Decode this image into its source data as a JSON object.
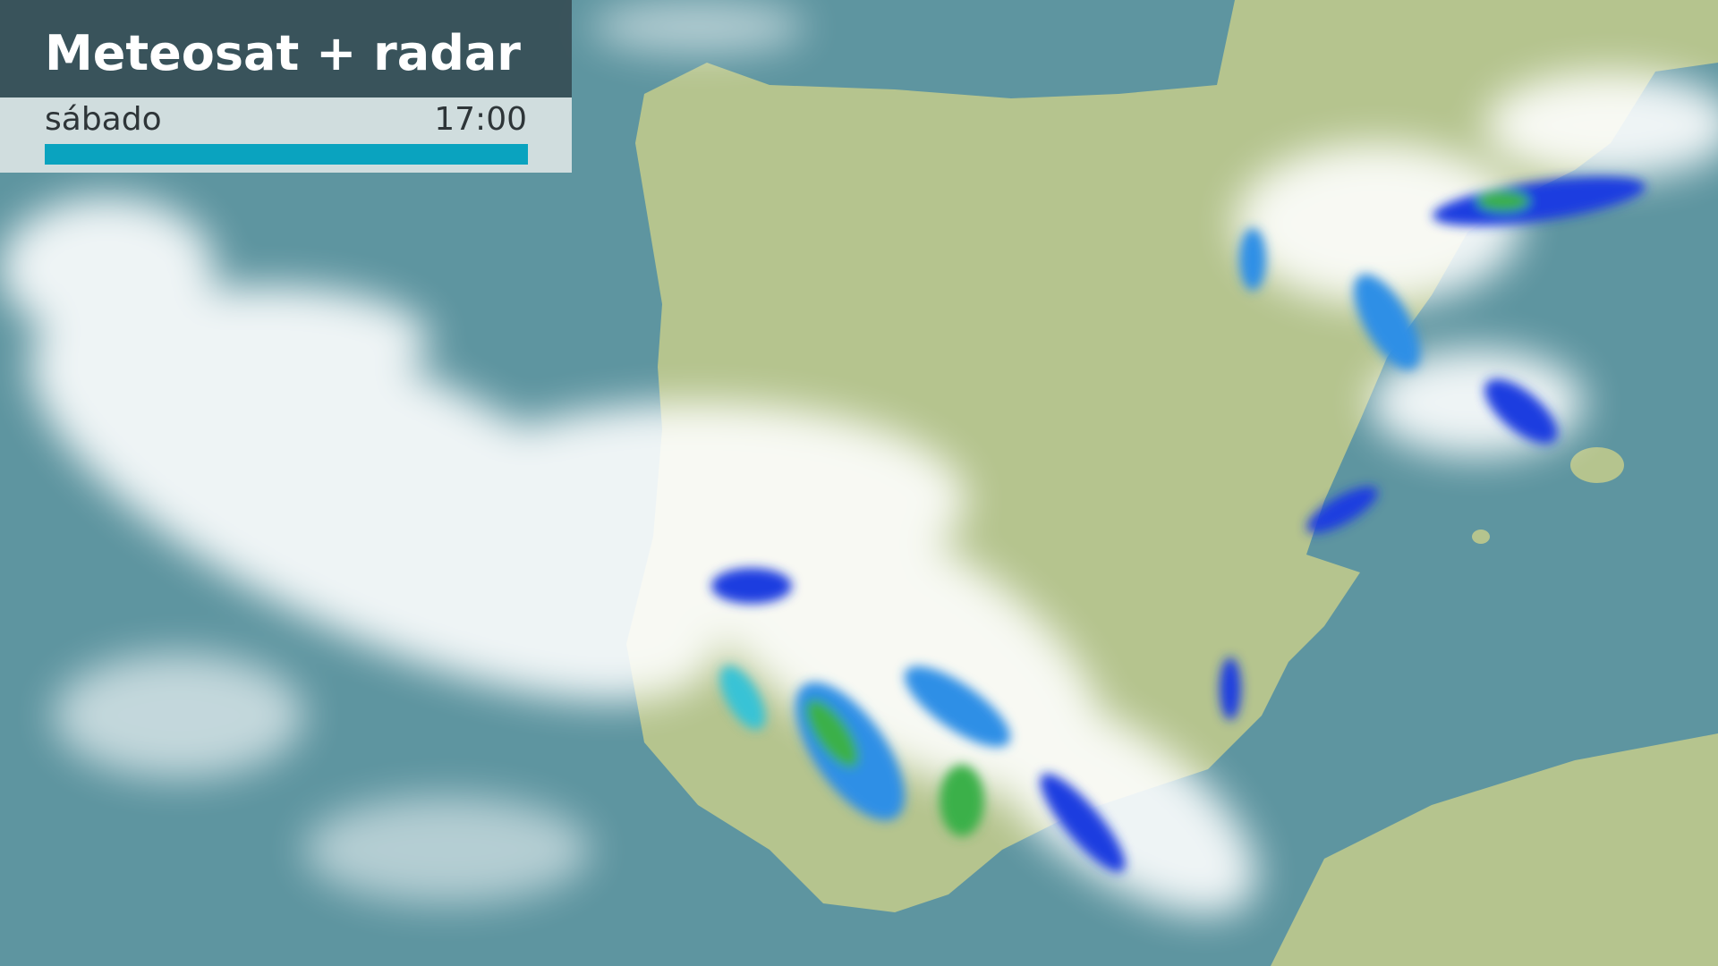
{
  "header": {
    "title": "Meteosat + radar",
    "day": "sábado",
    "time": "17:00"
  },
  "progress": {
    "percent": 100,
    "color": "#0aa3bf"
  },
  "map": {
    "ocean_color": "#5e95a0",
    "land_color": "#b5c48e",
    "cloud_color": "#ffffff",
    "radar_colors": [
      "#1a3ee0",
      "#2f8fe6",
      "#39c3d6",
      "#3bb04a"
    ]
  }
}
